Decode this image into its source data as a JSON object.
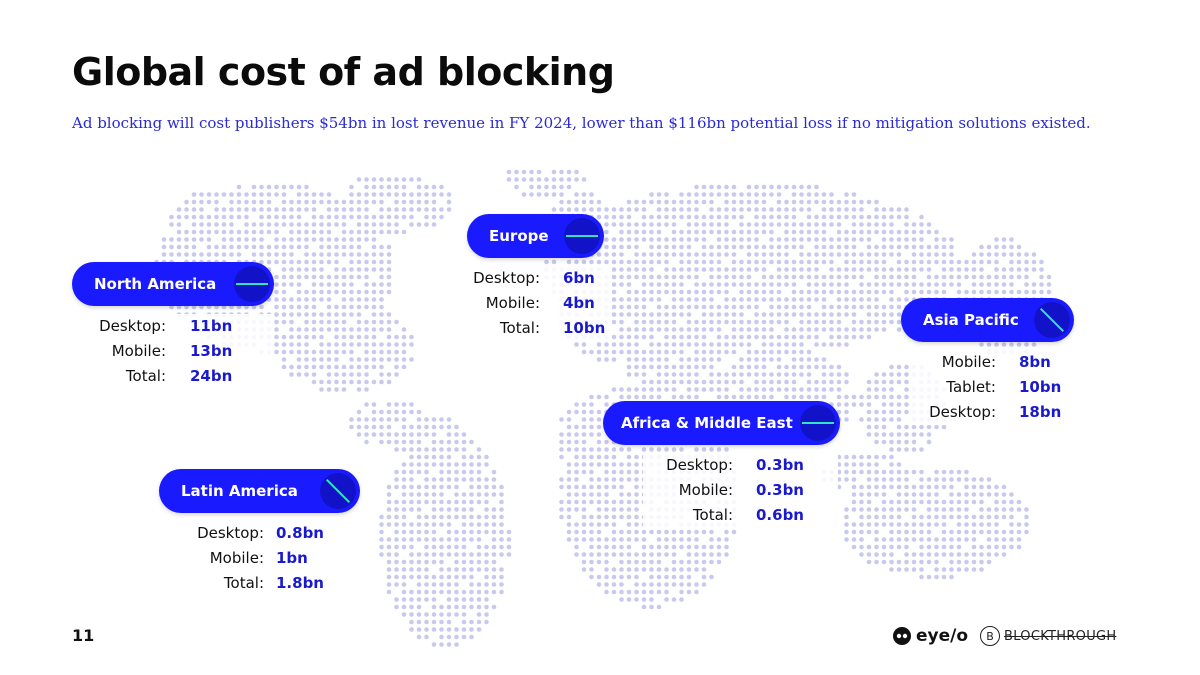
{
  "title": "Global cost of ad blocking",
  "subtitle": "Ad blocking will cost publishers $54bn in lost revenue in FY 2024, lower than $116bn potential loss if no mitigation solutions existed.",
  "page_number": "11",
  "logos": {
    "eyeo": "eye/o",
    "blockthrough": "BLOCKTHROUGH",
    "blockthrough_mark": "B"
  },
  "colors": {
    "accent": "#1a1aff",
    "value": "#1a1acc",
    "dot": "#c9c9ee"
  },
  "regions": {
    "north_america": {
      "name": "North America",
      "rows": [
        {
          "label": "Desktop:",
          "value": "11bn"
        },
        {
          "label": "Mobile:",
          "value": "13bn"
        },
        {
          "label": "Total:",
          "value": "24bn"
        }
      ]
    },
    "europe": {
      "name": "Europe",
      "rows": [
        {
          "label": "Desktop:",
          "value": "6bn"
        },
        {
          "label": "Mobile:",
          "value": "4bn"
        },
        {
          "label": "Total:",
          "value": "10bn"
        }
      ]
    },
    "asia_pacific": {
      "name": "Asia Pacific",
      "rows": [
        {
          "label": "Mobile:",
          "value": "8bn"
        },
        {
          "label": "Tablet:",
          "value": "10bn"
        },
        {
          "label": "Desktop:",
          "value": "18bn"
        }
      ]
    },
    "africa_middle_east": {
      "name": "Africa & Middle East",
      "rows": [
        {
          "label": "Desktop:",
          "value": "0.3bn"
        },
        {
          "label": "Mobile:",
          "value": "0.3bn"
        },
        {
          "label": "Total:",
          "value": "0.6bn"
        }
      ]
    },
    "latin_america": {
      "name": "Latin America",
      "rows": [
        {
          "label": "Desktop:",
          "value": "0.8bn"
        },
        {
          "label": "Mobile:",
          "value": "1bn"
        },
        {
          "label": "Total:",
          "value": "1.8bn"
        }
      ]
    }
  }
}
